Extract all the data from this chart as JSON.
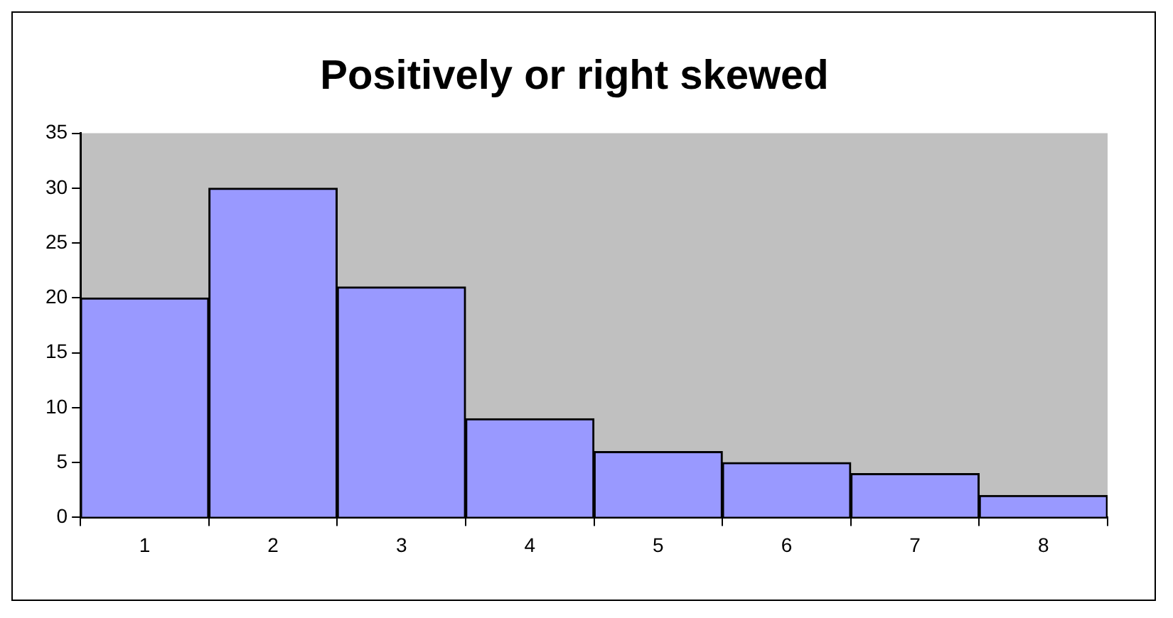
{
  "chart_data": {
    "type": "bar",
    "title": "Positively or right skewed",
    "categories": [
      "1",
      "2",
      "3",
      "4",
      "5",
      "6",
      "7",
      "8"
    ],
    "values": [
      20,
      30,
      21,
      9,
      6,
      5,
      4,
      2
    ],
    "color": "#9999ff",
    "ylim": [
      0,
      35
    ],
    "yticks": [
      0,
      5,
      10,
      15,
      20,
      25,
      30,
      35
    ],
    "grid": false,
    "legend": false
  }
}
